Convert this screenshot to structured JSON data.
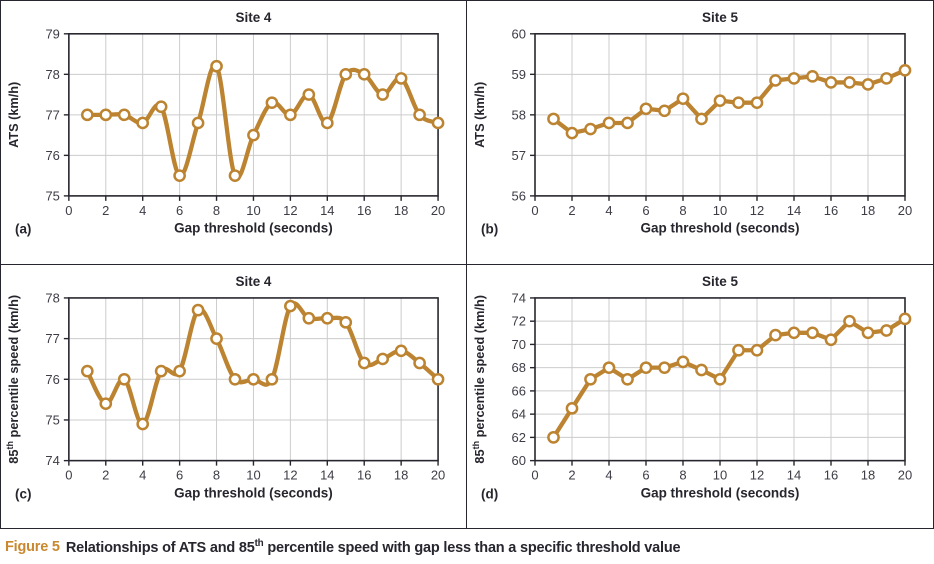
{
  "figure": {
    "caption_prefix": "Figure 5",
    "caption_text": "Relationships of ATS and 85^{th} percentile speed with gap less than a specific threshold value"
  },
  "colors": {
    "accent_line": "#bc8331",
    "marker_fill": "#ffffff",
    "text_dark": "#26262e",
    "tick_text": "#3d3d47",
    "grid": "#cccccc",
    "frame": "#26262e",
    "caption_accent": "#c9882f"
  },
  "chart_data": [
    {
      "panel_label": "(a)",
      "type": "line",
      "title": "Site 4",
      "xlabel": "Gap threshold (seconds)",
      "ylabel": "ATS (km/h)",
      "smooth": true,
      "marker": "open-circle",
      "grid": true,
      "legend": false,
      "xlim": [
        0,
        20
      ],
      "ylim": [
        75,
        79
      ],
      "xticks": [
        0,
        2,
        4,
        6,
        8,
        10,
        12,
        14,
        16,
        18,
        20
      ],
      "yticks": [
        75,
        76,
        77,
        78,
        79
      ],
      "x": [
        1,
        2,
        3,
        4,
        5,
        6,
        7,
        8,
        9,
        10,
        11,
        12,
        13,
        14,
        15,
        16,
        17,
        18,
        19,
        20
      ],
      "values": [
        77.0,
        77.0,
        77.0,
        76.8,
        77.2,
        75.5,
        76.8,
        78.2,
        75.5,
        76.5,
        77.3,
        77.0,
        77.5,
        76.8,
        78.0,
        78.0,
        77.5,
        77.9,
        77.0,
        76.8
      ]
    },
    {
      "panel_label": "(b)",
      "type": "line",
      "title": "Site 5",
      "xlabel": "Gap threshold (seconds)",
      "ylabel": "ATS (km/h)",
      "smooth": false,
      "marker": "open-circle",
      "grid": true,
      "legend": false,
      "xlim": [
        0,
        20
      ],
      "ylim": [
        56,
        60
      ],
      "xticks": [
        0,
        2,
        4,
        6,
        8,
        10,
        12,
        14,
        16,
        18,
        20
      ],
      "yticks": [
        56,
        57,
        58,
        59,
        60
      ],
      "x": [
        1,
        2,
        3,
        4,
        5,
        6,
        7,
        8,
        9,
        10,
        11,
        12,
        13,
        14,
        15,
        16,
        17,
        18,
        19,
        20
      ],
      "values": [
        57.9,
        57.55,
        57.65,
        57.8,
        57.8,
        58.15,
        58.1,
        58.4,
        57.9,
        58.35,
        58.3,
        58.3,
        58.85,
        58.9,
        58.95,
        58.8,
        58.8,
        58.75,
        58.9,
        59.1
      ]
    },
    {
      "panel_label": "(c)",
      "type": "line",
      "title": "Site 4",
      "xlabel": "Gap threshold (seconds)",
      "ylabel": "85^{th} percentile speed (km/h)",
      "smooth": true,
      "marker": "open-circle",
      "grid": true,
      "legend": false,
      "xlim": [
        0,
        20
      ],
      "ylim": [
        74,
        78
      ],
      "xticks": [
        0,
        2,
        4,
        6,
        8,
        10,
        12,
        14,
        16,
        18,
        20
      ],
      "yticks": [
        74,
        75,
        76,
        77,
        78
      ],
      "x": [
        1,
        2,
        3,
        4,
        5,
        6,
        7,
        8,
        9,
        10,
        11,
        12,
        13,
        14,
        15,
        16,
        17,
        18,
        19,
        20
      ],
      "values": [
        76.2,
        75.4,
        76.0,
        74.9,
        76.2,
        76.2,
        77.7,
        77.0,
        76.0,
        76.0,
        76.0,
        77.8,
        77.5,
        77.5,
        77.4,
        76.4,
        76.5,
        76.7,
        76.4,
        76.0
      ]
    },
    {
      "panel_label": "(d)",
      "type": "line",
      "title": "Site 5",
      "xlabel": "Gap threshold (seconds)",
      "ylabel": "85^{th} percentile speed (km/h)",
      "smooth": false,
      "marker": "open-circle",
      "grid": true,
      "legend": false,
      "xlim": [
        0,
        20
      ],
      "ylim": [
        60,
        74
      ],
      "xticks": [
        0,
        2,
        4,
        6,
        8,
        10,
        12,
        14,
        16,
        18,
        20
      ],
      "yticks": [
        60,
        62,
        64,
        66,
        68,
        70,
        72,
        74
      ],
      "x": [
        1,
        2,
        3,
        4,
        5,
        6,
        7,
        8,
        9,
        10,
        11,
        12,
        13,
        14,
        15,
        16,
        17,
        18,
        19,
        20
      ],
      "values": [
        62.0,
        64.5,
        67.0,
        68.0,
        67.0,
        68.0,
        68.0,
        68.5,
        67.8,
        67.0,
        69.5,
        69.5,
        70.8,
        71.0,
        71.0,
        70.4,
        72.0,
        71.0,
        71.2,
        72.2
      ]
    }
  ]
}
